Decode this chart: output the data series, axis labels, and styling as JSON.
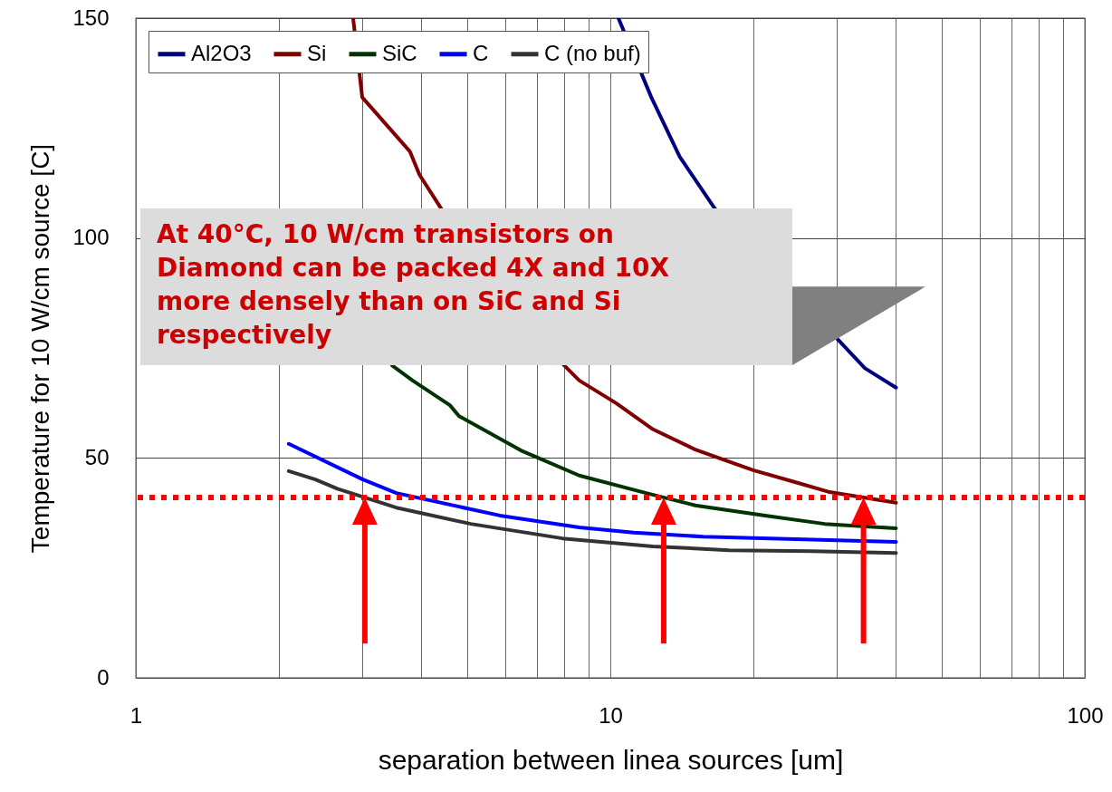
{
  "chart_data": {
    "type": "line",
    "xlabel": "separation between linea sources [um]",
    "ylabel": "Temperature for 10 W/cm source [C]",
    "log": "x",
    "xlim": [
      1,
      100
    ],
    "xticks": [
      1,
      10,
      100
    ],
    "ylim": [
      0,
      150
    ],
    "yticks": [
      0,
      50,
      100,
      150
    ],
    "grid": true,
    "legend": "top left",
    "series": [
      {
        "name": "Al2O3",
        "color": "#000080",
        "x": [
          10.4,
          12.2,
          14.0,
          16.6,
          34.4,
          40
        ],
        "values": [
          150,
          132,
          118.5,
          106.7,
          70.4,
          66
        ]
      },
      {
        "name": "Si",
        "color": "#800000",
        "x": [
          2.87,
          3.0,
          3.78,
          3.96,
          4.4,
          8.0,
          8.6,
          10.3,
          12.3,
          15.1,
          20.0,
          24.5,
          28.8,
          40
        ],
        "values": [
          150,
          132,
          119.7,
          114.4,
          106.7,
          71,
          67.6,
          62.4,
          56.5,
          51.9,
          47.2,
          44.5,
          42.3,
          39.8
        ]
      },
      {
        "name": "SiC",
        "color": "#003300",
        "x": [
          3.47,
          3.83,
          4.59,
          4.8,
          6.48,
          8.6,
          11.9,
          15.1,
          21.2,
          28.3,
          40
        ],
        "values": [
          71,
          67.6,
          62,
          59.5,
          51.7,
          46,
          42,
          39.2,
          36.9,
          35,
          34
        ]
      },
      {
        "name": "C",
        "color": "#0000ff",
        "x": [
          2.1,
          3.01,
          3.54,
          5.85,
          8.6,
          11.2,
          15.7,
          21.8,
          40
        ],
        "values": [
          53.2,
          45.1,
          42,
          36.9,
          34.2,
          33,
          32.1,
          31.7,
          30.9
        ]
      },
      {
        "name": "C (no buf)",
        "color": "#333333",
        "x": [
          2.1,
          2.39,
          2.66,
          3.54,
          5.08,
          7.93,
          12.3,
          17.8,
          26.6,
          40
        ],
        "values": [
          47,
          45.1,
          43,
          38.7,
          35,
          31.7,
          29.9,
          29,
          28.8,
          28.4
        ]
      }
    ],
    "ref_lines": [
      {
        "axis": "y",
        "value": 41,
        "color": "#ff0000",
        "line_style": "dotted"
      }
    ],
    "annotations": [
      "At 40°C, 10 W/cm transistors on Diamond can be packed 4X and 10X more densely than on SiC and Si respectively"
    ]
  }
}
